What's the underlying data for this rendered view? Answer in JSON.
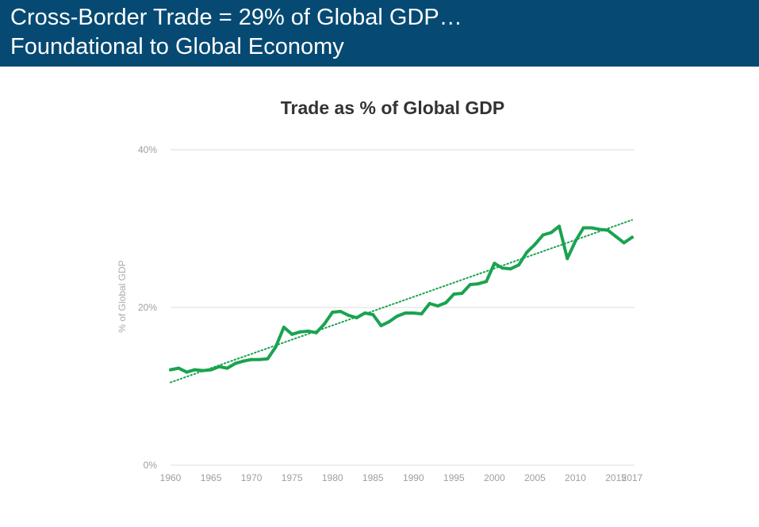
{
  "header": {
    "line1": "Cross-Border Trade = 29% of Global GDP…",
    "line2": "Foundational to Global Economy"
  },
  "colors": {
    "header_bg": "#064a73",
    "series": "#1aa350",
    "trendline": "#1aa350",
    "grid": "#dddddd"
  },
  "chart_data": {
    "type": "line",
    "title": "Trade as % of Global GDP",
    "xlabel": "",
    "ylabel": "% of Global GDP",
    "xlim": [
      1960,
      2017
    ],
    "ylim": [
      0,
      40
    ],
    "y_ticks": [
      0,
      20,
      40
    ],
    "y_tick_labels": [
      "0%",
      "20%",
      "40%"
    ],
    "x_ticks": [
      1960,
      1965,
      1970,
      1975,
      1980,
      1985,
      1990,
      1995,
      2000,
      2005,
      2010,
      2015,
      2017
    ],
    "x_tick_labels": [
      "1960",
      "1965",
      "1970",
      "1975",
      "1980",
      "1985",
      "1990",
      "1995",
      "2000",
      "2005",
      "2010",
      "2015",
      "2017"
    ],
    "grid": true,
    "legend": "none",
    "trendline": {
      "style": "dotted",
      "x": [
        1960,
        2017
      ],
      "y": [
        10.5,
        31.1
      ]
    },
    "series": [
      {
        "x": [
          1960,
          1961,
          1962,
          1963,
          1964,
          1965,
          1966,
          1967,
          1968,
          1969,
          1970,
          1971,
          1972,
          1973,
          1974,
          1975,
          1976,
          1977,
          1978,
          1979,
          1980,
          1981,
          1982,
          1983,
          1984,
          1985,
          1986,
          1987,
          1988,
          1989,
          1990,
          1991,
          1992,
          1993,
          1994,
          1995,
          1996,
          1997,
          1998,
          1999,
          2000,
          2001,
          2002,
          2003,
          2004,
          2005,
          2006,
          2007,
          2008,
          2009,
          2010,
          2011,
          2012,
          2013,
          2014,
          2015,
          2016,
          2017
        ],
        "values": [
          12.1,
          12.3,
          11.8,
          12.1,
          12.0,
          12.1,
          12.5,
          12.3,
          12.9,
          13.2,
          13.4,
          13.4,
          13.5,
          15.0,
          17.5,
          16.6,
          16.9,
          17.0,
          16.8,
          17.9,
          19.4,
          19.5,
          19.0,
          18.7,
          19.3,
          19.1,
          17.7,
          18.2,
          18.9,
          19.3,
          19.3,
          19.2,
          20.5,
          20.2,
          20.6,
          21.7,
          21.8,
          22.9,
          23.0,
          23.3,
          25.6,
          25.0,
          24.9,
          25.4,
          27.0,
          28.0,
          29.2,
          29.5,
          30.3,
          26.2,
          28.4,
          30.1,
          30.1,
          29.9,
          29.8,
          29.0,
          28.2,
          28.9
        ]
      }
    ]
  }
}
